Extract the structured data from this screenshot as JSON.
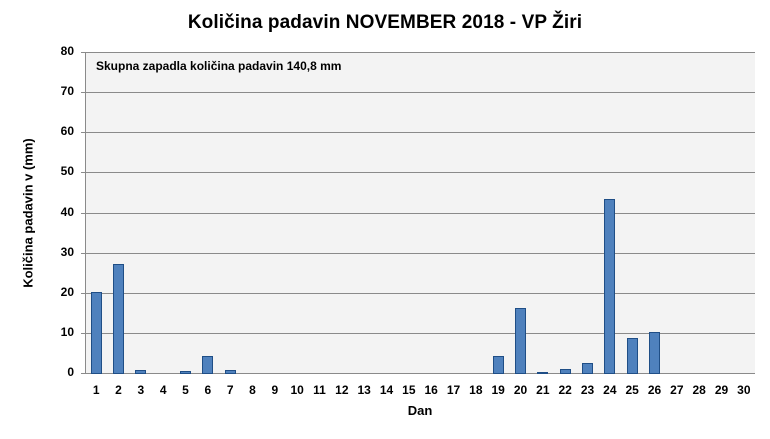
{
  "chart_data": {
    "type": "bar",
    "title": "Količina padavin NOVEMBER 2018 - VP Žiri",
    "xlabel": "Dan",
    "ylabel": "Količina padavin v  (mm)",
    "annotation": "Skupna zapadla količina padavin 140,8 mm",
    "ylim": [
      0,
      80
    ],
    "yticks": [
      0,
      10,
      20,
      30,
      40,
      50,
      60,
      70,
      80
    ],
    "grid": true,
    "legend": null,
    "categories": [
      "1",
      "2",
      "3",
      "4",
      "5",
      "6",
      "7",
      "8",
      "9",
      "10",
      "11",
      "12",
      "13",
      "14",
      "15",
      "16",
      "17",
      "18",
      "19",
      "20",
      "21",
      "22",
      "23",
      "24",
      "25",
      "26",
      "27",
      "28",
      "29",
      "30"
    ],
    "series": [
      {
        "name": "Količina padavin (mm)",
        "color": "#4f81bd",
        "values": [
          20.3,
          27.1,
          0.8,
          0,
          0.6,
          4.3,
          0.8,
          0,
          0,
          0,
          0,
          0,
          0,
          0,
          0,
          0,
          0,
          0,
          4.3,
          16.3,
          0.3,
          1.0,
          2.6,
          43.3,
          8.8,
          10.3,
          0,
          0,
          0,
          0
        ]
      }
    ]
  },
  "colors": {
    "bar_fill": "#4f81bd",
    "bar_border": "#1f4e86",
    "plot_bg": "#f3f3f3",
    "grid": "#8a8a8a"
  }
}
